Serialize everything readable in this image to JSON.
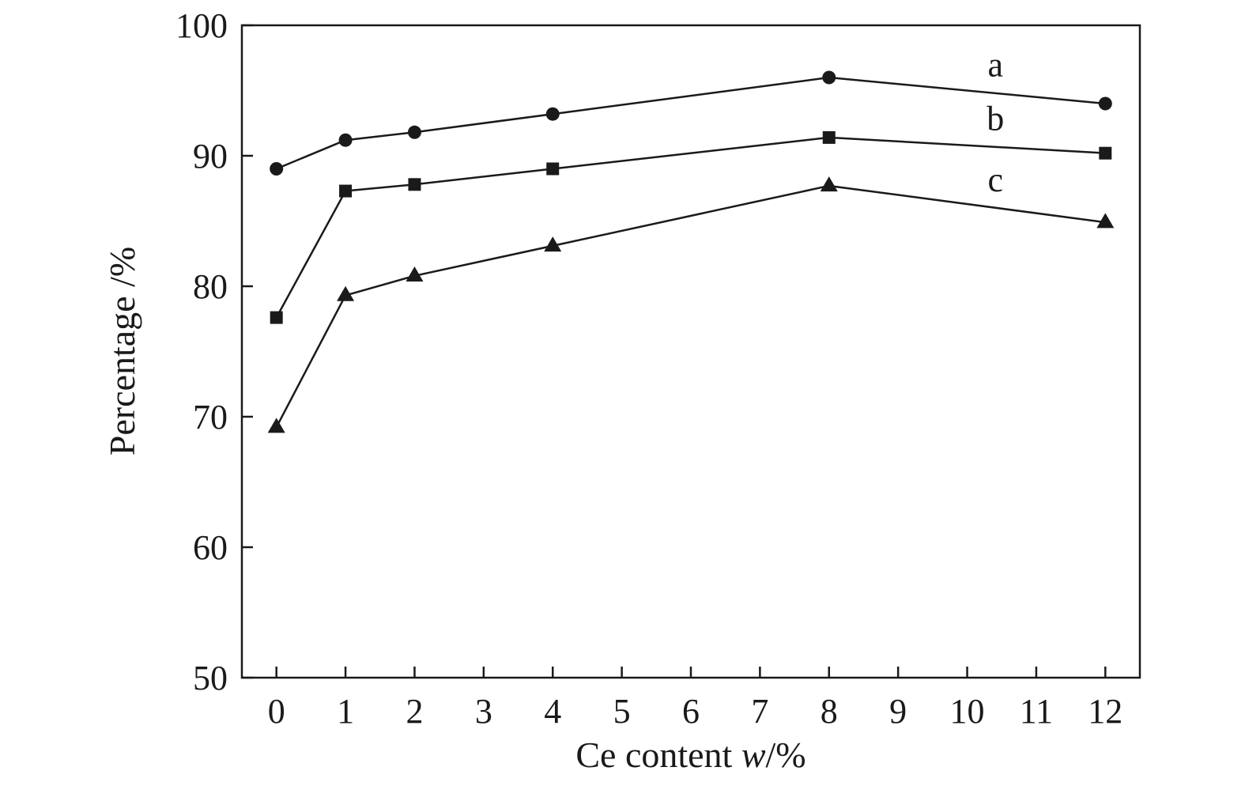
{
  "chart_data": {
    "type": "line",
    "xlabel": "Ce content w/%",
    "xlabel_parts": {
      "prefix": "Ce content ",
      "italic": "w",
      "suffix": "/%"
    },
    "ylabel": "Percentage /%",
    "xlim": [
      -0.5,
      12.5
    ],
    "ylim": [
      50,
      100
    ],
    "xticks": [
      0,
      1,
      2,
      3,
      4,
      5,
      6,
      7,
      8,
      9,
      10,
      11,
      12
    ],
    "yticks": [
      50,
      60,
      70,
      80,
      90,
      100
    ],
    "grid": false,
    "legend": "none",
    "x": [
      0,
      1,
      2,
      4,
      8,
      12
    ],
    "series": [
      {
        "name": "a",
        "marker": "circle",
        "values": [
          89.0,
          91.2,
          91.8,
          93.2,
          96.0,
          94.0
        ]
      },
      {
        "name": "b",
        "marker": "square",
        "values": [
          77.6,
          87.3,
          87.8,
          89.0,
          91.4,
          90.2
        ]
      },
      {
        "name": "c",
        "marker": "triangle",
        "values": [
          69.2,
          79.3,
          80.8,
          83.1,
          87.7,
          84.9
        ]
      }
    ],
    "line_color": "#1a1a1a"
  }
}
